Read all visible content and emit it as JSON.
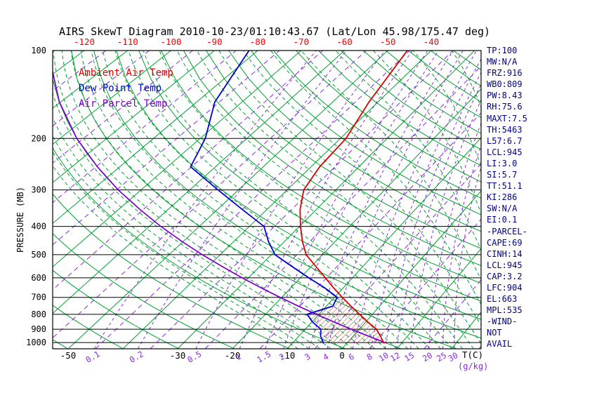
{
  "chart_data": {
    "type": "line",
    "subtype": "skew-t-log-p",
    "title": "AIRS SkewT Diagram 2010-10-23/01:10:43.67 (Lat/Lon 45.98/175.47 deg)",
    "pressure_axis": {
      "label": "PRESSURE (MB)",
      "scale": "log",
      "range": [
        1050,
        100
      ],
      "ticks": [
        100,
        200,
        300,
        400,
        500,
        600,
        700,
        800,
        900,
        1000
      ]
    },
    "temp_axis_top": {
      "ticks": [
        -120,
        -110,
        -100,
        -90,
        -80,
        -70,
        -60,
        -50,
        -40
      ],
      "color": "#ff0000"
    },
    "temp_axis_bottom": {
      "ticks": [
        -50,
        -30,
        -20,
        -10,
        0
      ],
      "unit_label": "T(C)",
      "color": "#000000"
    },
    "mixing_ratio_axis": {
      "values": [
        0.1,
        0.2,
        0.5,
        1,
        1.5,
        2,
        3,
        4,
        6,
        8,
        10,
        12,
        15,
        20,
        25,
        30
      ],
      "unit_label": "(g/kg)",
      "color": "#8a2be2"
    },
    "grid": {
      "isotherm_solid_range": [
        -120,
        40
      ],
      "isotherm_solid_step": 10,
      "isotherm_dashed_range": [
        -115,
        35
      ],
      "isotherm_dashed_step": 10,
      "dry_adiabat_theta_k": {
        "min": 220,
        "max": 460,
        "step": 10
      },
      "moist_adiabat_t0_c": {
        "min": -8,
        "max": 56,
        "step": 2
      },
      "green_color": "#00a030",
      "dashed_purple_color": "#8a2be2",
      "pressure_line_color": "#000000"
    },
    "legend": [
      {
        "label": "Ambient Air Temp",
        "color": "#dd0000"
      },
      {
        "label": "Dew Point Temp",
        "color": "#0000cd"
      },
      {
        "label": "Air Parcel Temp",
        "color": "#7d00cd"
      }
    ],
    "series": {
      "ambient_air_temp": {
        "color": "#dd0000",
        "points_p_t": [
          [
            1005,
            6.8
          ],
          [
            950,
            5.0
          ],
          [
            900,
            3.2
          ],
          [
            850,
            0.4
          ],
          [
            800,
            -2.4
          ],
          [
            750,
            -5.4
          ],
          [
            700,
            -8.5
          ],
          [
            650,
            -11.8
          ],
          [
            600,
            -15.2
          ],
          [
            550,
            -19.0
          ],
          [
            500,
            -23.2
          ],
          [
            450,
            -26.5
          ],
          [
            400,
            -29.8
          ],
          [
            350,
            -33.3
          ],
          [
            300,
            -36.6
          ],
          [
            250,
            -38.2
          ],
          [
            200,
            -38.8
          ],
          [
            150,
            -42.0
          ],
          [
            100,
            -45.5
          ]
        ]
      },
      "dew_point_temp": {
        "color": "#0000cd",
        "points_p_t": [
          [
            1005,
            -4.3
          ],
          [
            950,
            -6.0
          ],
          [
            900,
            -7.1
          ],
          [
            850,
            -9.9
          ],
          [
            800,
            -12.2
          ],
          [
            750,
            -8.8
          ],
          [
            700,
            -9.5
          ],
          [
            650,
            -13.5
          ],
          [
            600,
            -18.4
          ],
          [
            550,
            -23.6
          ],
          [
            500,
            -29.3
          ],
          [
            450,
            -33.2
          ],
          [
            400,
            -37.1
          ],
          [
            350,
            -45.0
          ],
          [
            300,
            -54.2
          ],
          [
            250,
            -65.2
          ],
          [
            200,
            -68.9
          ],
          [
            150,
            -76.0
          ],
          [
            100,
            -82.0
          ]
        ]
      },
      "air_parcel_temp": {
        "color": "#7d00cd",
        "points_p_t": [
          [
            1005,
            7.0
          ],
          [
            1000,
            6.9
          ],
          [
            950,
            2.8
          ],
          [
            900,
            -1.5
          ],
          [
            850,
            -5.9
          ],
          [
            800,
            -10.5
          ],
          [
            750,
            -15.3
          ],
          [
            700,
            -20.3
          ],
          [
            650,
            -25.6
          ],
          [
            600,
            -31.2
          ],
          [
            550,
            -37.1
          ],
          [
            500,
            -43.5
          ],
          [
            450,
            -50.3
          ],
          [
            400,
            -57.7
          ],
          [
            350,
            -65.7
          ],
          [
            300,
            -74.7
          ],
          [
            250,
            -84.7
          ],
          [
            200,
            -96.4
          ],
          [
            150,
            -110.3
          ],
          [
            110,
            -124
          ]
        ]
      }
    },
    "saturated_layer_hatch": {
      "between": [
        "dew_point_temp",
        "ambient_air_temp"
      ],
      "pressure_range": [
        1005,
        700
      ],
      "color": "#c04545"
    },
    "stats_panel": {
      "color": "#00008b",
      "lines": [
        "TP:100",
        "MW:N/A",
        "FRZ:916",
        "WB0:809",
        "PW:8.43",
        "RH:75.6",
        "MAXT:7.5",
        "TH:5463",
        "L57:6.7",
        "LCL:945",
        "LI:3.0",
        "SI:5.7",
        "TT:51.1",
        "KI:286",
        "SW:N/A",
        "EI:0.1",
        "-PARCEL-",
        "CAPE:69",
        "CINH:14",
        "LCL:945",
        "CAP:3.2",
        "LFC:904",
        "EL:663",
        "MPL:535",
        "-WIND-",
        "NOT",
        "AVAIL"
      ]
    }
  }
}
